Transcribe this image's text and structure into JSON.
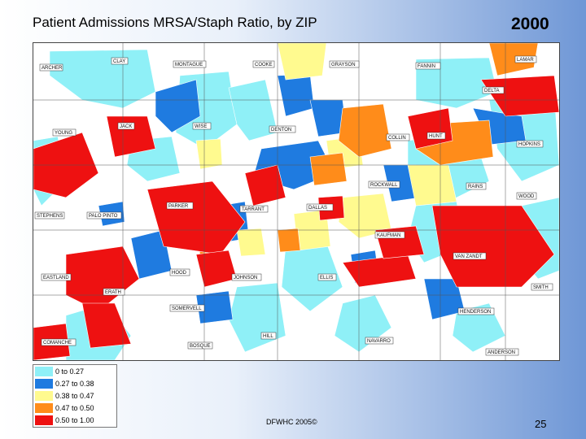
{
  "slide": {
    "title": "Patient Admissions MRSA/Staph Ratio, by ZIP",
    "year": "2000",
    "footer": "DFWHC 2005©",
    "page_number": "25"
  },
  "legend": [
    {
      "label": "0 to 0.27",
      "color": "#8ff0f7"
    },
    {
      "label": "0.27 to 0.38",
      "color": "#1f7be0"
    },
    {
      "label": "0.38 to 0.47",
      "color": "#fffa8f"
    },
    {
      "label": "0.47 to 0.50",
      "color": "#ff8c1a"
    },
    {
      "label": "0.50 to 1.00",
      "color": "#ee1111"
    }
  ],
  "counties": [
    "ARCHER",
    "CLAY",
    "MONTAGUE",
    "COOKE",
    "GRAYSON",
    "FANNIN",
    "LAMAR",
    "DELTA",
    "YOUNG",
    "JACK",
    "WISE",
    "DENTON",
    "COLLIN",
    "HUNT",
    "HOPKINS",
    "ROCKWALL",
    "RAINS",
    "WOOD",
    "STEPHENS",
    "PALO PINTO",
    "PARKER",
    "TARRANT",
    "DALLAS",
    "KAUFMAN",
    "VAN ZANDT",
    "EASTLAND",
    "HOOD",
    "JOHNSON",
    "ELLIS",
    "ERATH",
    "SOMERVELL",
    "HENDERSON",
    "SMITH",
    "COMANCHE",
    "BOSQUE",
    "HILL",
    "NAVARRO",
    "ANDERSON"
  ]
}
